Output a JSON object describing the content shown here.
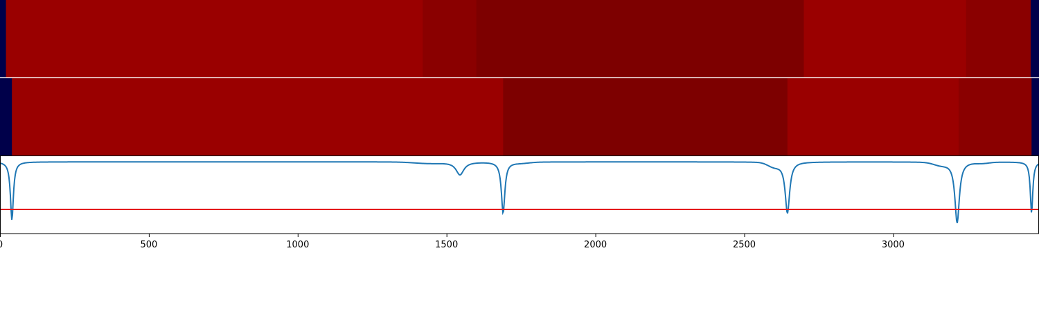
{
  "chart_data": {
    "type": "heatmap",
    "x_range": [
      0,
      3490
    ],
    "x_ticks": [
      0,
      500,
      1000,
      1500,
      2000,
      2500,
      3000
    ],
    "x_tick_labels": [
      "0",
      "500",
      "1000",
      "1500",
      "2000",
      "2500",
      "3000"
    ],
    "colors": {
      "edge": "#00004a",
      "level_high": "#9a0000",
      "level_mid": "#8a0000",
      "level_low": "#7d0000",
      "curve": "#1f77b4",
      "threshold": "#e41a1c"
    },
    "heatmap_rows": [
      {
        "segments": [
          {
            "start": 0,
            "end": 20,
            "level": "edge"
          },
          {
            "start": 20,
            "end": 1420,
            "level": "level_high"
          },
          {
            "start": 1420,
            "end": 1600,
            "level": "level_mid"
          },
          {
            "start": 1600,
            "end": 2700,
            "level": "level_low"
          },
          {
            "start": 2700,
            "end": 3245,
            "level": "level_high"
          },
          {
            "start": 3245,
            "end": 3462,
            "level": "level_mid"
          },
          {
            "start": 3462,
            "end": 3490,
            "level": "edge"
          }
        ]
      },
      {
        "segments": [
          {
            "start": 0,
            "end": 40,
            "level": "edge"
          },
          {
            "start": 40,
            "end": 1690,
            "level": "level_high"
          },
          {
            "start": 1690,
            "end": 2645,
            "level": "level_low"
          },
          {
            "start": 2645,
            "end": 3220,
            "level": "level_high"
          },
          {
            "start": 3220,
            "end": 3465,
            "level": "level_mid"
          },
          {
            "start": 3465,
            "end": 3490,
            "level": "edge"
          }
        ]
      }
    ],
    "curve": {
      "baseline": 0.0,
      "ylim": [
        -1.0,
        0.08
      ],
      "dips": [
        {
          "x": 40,
          "depth": -0.82,
          "width": 6
        },
        {
          "x": 1545,
          "depth": -0.18,
          "width": 16
        },
        {
          "x": 1690,
          "depth": -0.72,
          "width": 7
        },
        {
          "x": 2645,
          "depth": -0.72,
          "width": 9
        },
        {
          "x": 3215,
          "depth": -0.86,
          "width": 9
        },
        {
          "x": 3465,
          "depth": -0.72,
          "width": 5
        }
      ],
      "shoulders": [
        {
          "x": 1440,
          "depth": -0.02,
          "width": 70
        },
        {
          "x": 1750,
          "depth": -0.015,
          "width": 40
        },
        {
          "x": 2600,
          "depth": -0.06,
          "width": 30
        },
        {
          "x": 3160,
          "depth": -0.04,
          "width": 35
        },
        {
          "x": 3300,
          "depth": -0.015,
          "width": 30
        }
      ],
      "threshold": -1.0
    }
  }
}
